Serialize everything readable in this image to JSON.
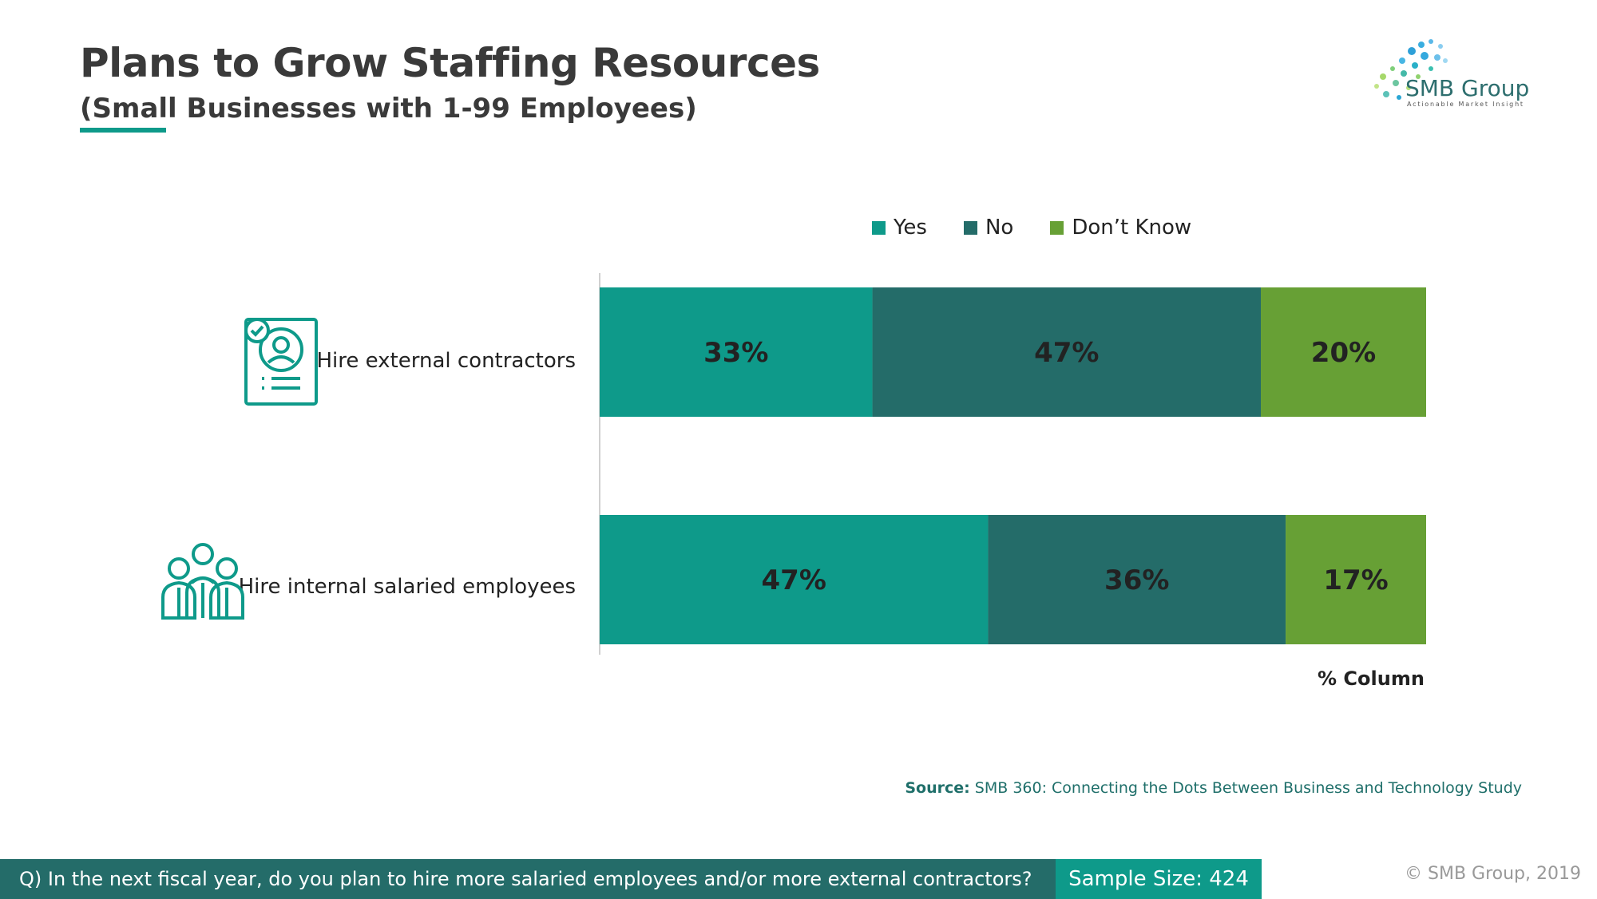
{
  "header": {
    "title": "Plans to Grow Staffing Resources",
    "subtitle": "(Small Businesses with 1-99 Employees)"
  },
  "logo": {
    "name": "SMB Group",
    "tagline": "Actionable Market Insight"
  },
  "chart_data": {
    "type": "bar",
    "orientation": "horizontal",
    "stacked": true,
    "categories": [
      "Hire external contractors",
      "Hire internal salaried employees"
    ],
    "series": [
      {
        "name": "Yes",
        "color": "#0e9a8a",
        "values": [
          33,
          47
        ],
        "labels": [
          "33%",
          "47%"
        ]
      },
      {
        "name": "No",
        "color": "#246c69",
        "values": [
          47,
          36
        ],
        "labels": [
          "47%",
          "36%"
        ]
      },
      {
        "name": "Don’t Know",
        "color": "#67a035",
        "values": [
          20,
          17
        ],
        "labels": [
          "20%",
          "17%"
        ]
      }
    ],
    "xlim": [
      0,
      100
    ],
    "unit_note": "% Column",
    "legend": "top",
    "grid": false
  },
  "icons": [
    "contractor-badge-icon",
    "employee-group-icon"
  ],
  "source": {
    "label": "Source:",
    "text": " SMB 360: Connecting the Dots Between Business and Technology Study"
  },
  "footer": {
    "question": "Q) In the next fiscal year, do you plan to hire more salaried employees and/or more external contractors?",
    "sample": "Sample Size: 424",
    "copyright": "© SMB Group, 2019"
  }
}
